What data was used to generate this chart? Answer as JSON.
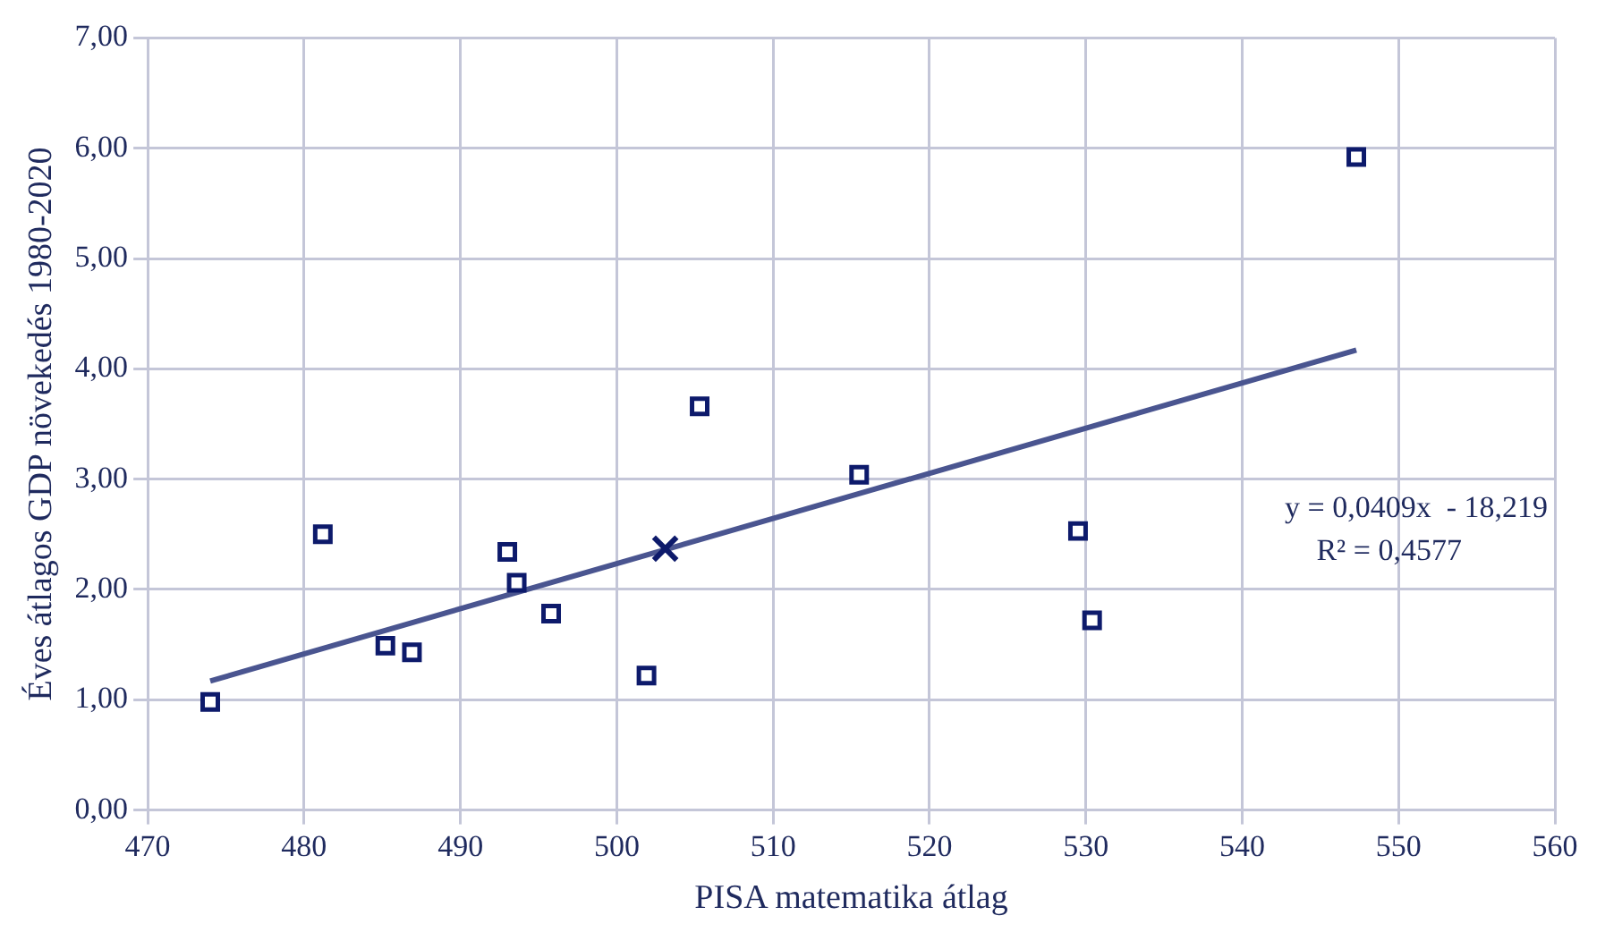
{
  "chart_data": {
    "type": "scatter",
    "xlabel": "PISA matematika átlag",
    "ylabel": "Éves átlagos GDP növekedés 1980-2020",
    "xlim": [
      470,
      560
    ],
    "xticks": [
      470,
      480,
      490,
      500,
      510,
      520,
      530,
      540,
      550,
      560
    ],
    "ylim": [
      0,
      7
    ],
    "yticks": [
      {
        "value": 0,
        "label": "0,00"
      },
      {
        "value": 1,
        "label": "1,00"
      },
      {
        "value": 2,
        "label": "2,00"
      },
      {
        "value": 3,
        "label": "3,00"
      },
      {
        "value": 4,
        "label": "4,00"
      },
      {
        "value": 5,
        "label": "5,00"
      },
      {
        "value": 6,
        "label": "6,00"
      },
      {
        "value": 7,
        "label": "7,00"
      }
    ],
    "grid": true,
    "series": [
      {
        "type": "scatter",
        "marker": "square",
        "color": "#0d1a6b",
        "x": [
          474.0,
          481.2,
          485.2,
          493.0,
          493.6,
          495.8,
          501.9,
          505.3,
          515.5,
          529.5,
          530.4,
          547.3
        ],
        "values": [
          0.98,
          2.5,
          1.49,
          2.34,
          2.06,
          1.78,
          1.22,
          3.66,
          3.04,
          2.53,
          1.72,
          5.92
        ]
      },
      {
        "type": "scatter",
        "marker": "square",
        "color": "#0d1a6b",
        "x": [
          486.9
        ],
        "values": [
          1.43
        ]
      },
      {
        "type": "scatter",
        "marker": "cross",
        "color": "#0d1a6b",
        "x": [
          503.1
        ],
        "values": [
          2.37
        ]
      },
      {
        "type": "line",
        "marker": "none",
        "color": "#4a5590",
        "x": [
          474.0,
          547.3
        ],
        "values": [
          1.17,
          4.17
        ]
      }
    ],
    "annotations": [
      "y = 0,0409x  - 18,219",
      "R² = 0,4577"
    ]
  }
}
